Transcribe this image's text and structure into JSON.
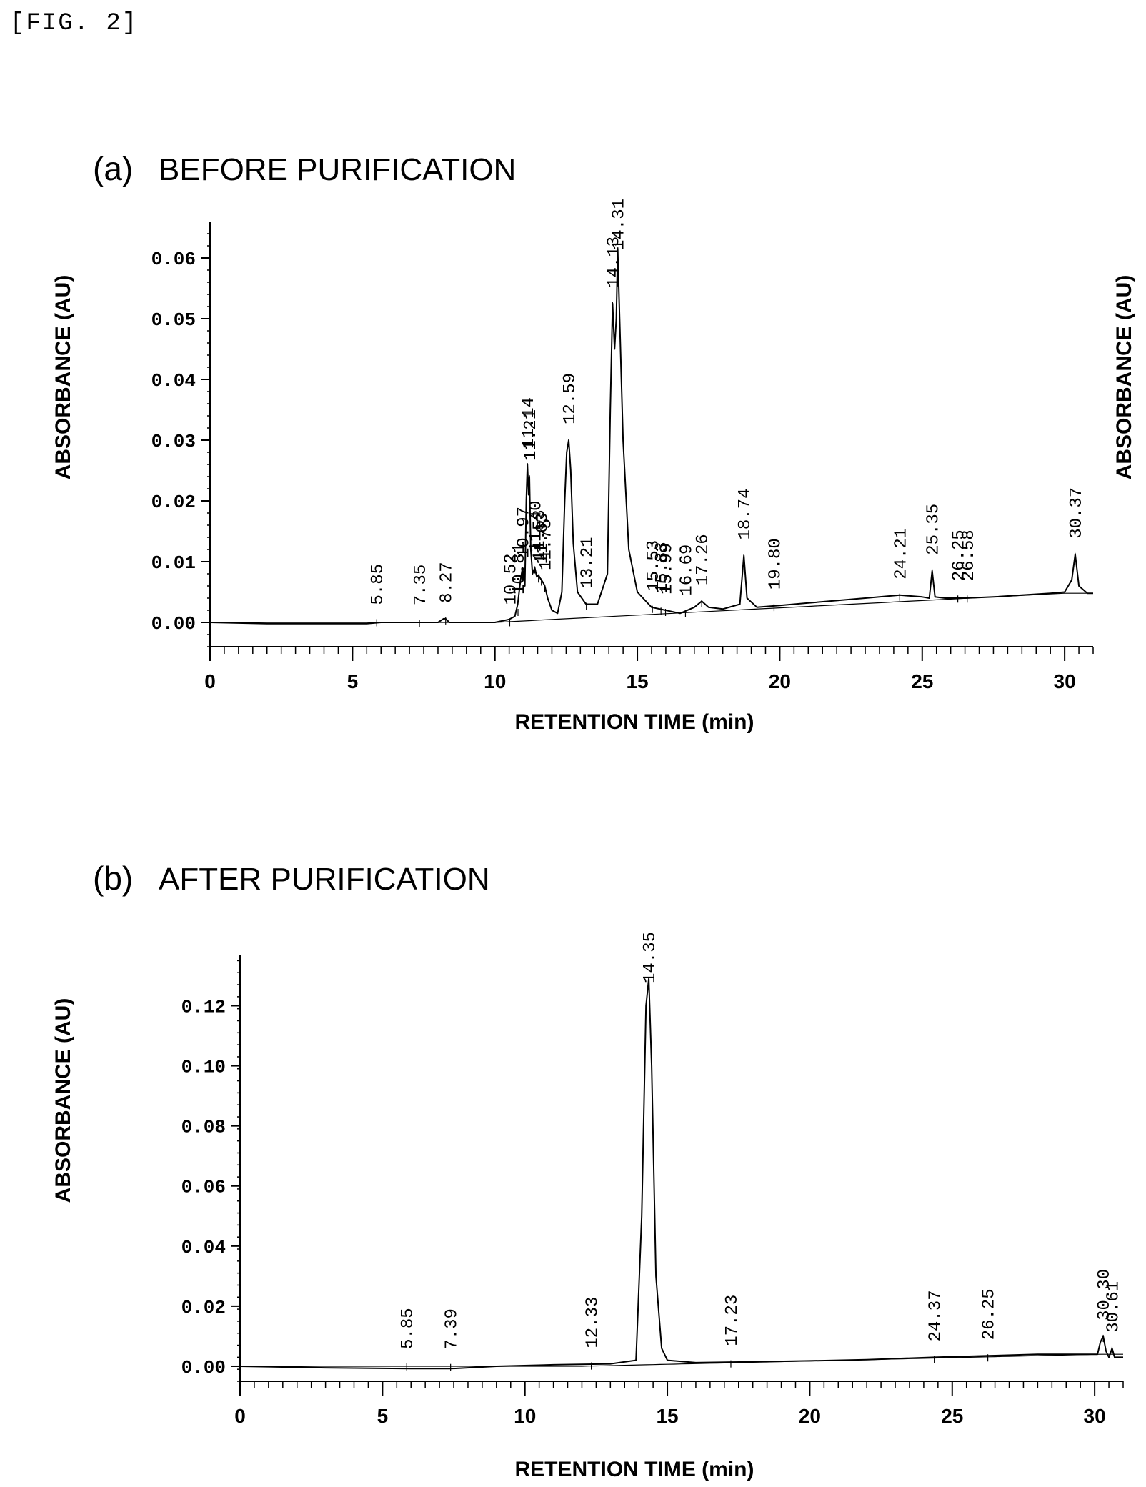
{
  "figure_label": "[FIG. 2]",
  "chart_data": [
    {
      "type": "line",
      "panel_label": "(a)",
      "title": "BEFORE PURIFICATION",
      "xlabel": "RETENTION TIME (min)",
      "ylabel": "ABSORBANCE (AU)",
      "ylabel_right": "ABSORBANCE (AU)",
      "xlim": [
        0,
        31
      ],
      "ylim": [
        -0.004,
        0.066
      ],
      "xticks": [
        0,
        5,
        10,
        15,
        20,
        25,
        30
      ],
      "xtick_labels": [
        "0",
        "5",
        "10",
        "15",
        "20",
        "25",
        "30"
      ],
      "yticks": [
        0.0,
        0.01,
        0.02,
        0.03,
        0.04,
        0.05,
        0.06
      ],
      "ytick_labels": [
        "0.00",
        "0.01",
        "0.02",
        "0.03",
        "0.04",
        "0.05",
        "0.06"
      ],
      "peaks": [
        {
          "label": "5.85",
          "x": 5.85,
          "y": 0.0003
        },
        {
          "label": "7.35",
          "x": 7.35,
          "y": 0.0002
        },
        {
          "label": "8.27",
          "x": 8.27,
          "y": 0.0006
        },
        {
          "label": "10.52",
          "x": 10.52,
          "y": 0.0003
        },
        {
          "label": "10.81",
          "x": 10.81,
          "y": 0.002
        },
        {
          "label": "10.97",
          "x": 10.97,
          "y": 0.008
        },
        {
          "label": "11.14",
          "x": 11.14,
          "y": 0.026
        },
        {
          "label": "11.21",
          "x": 11.21,
          "y": 0.024
        },
        {
          "label": "11.40",
          "x": 11.4,
          "y": 0.009
        },
        {
          "label": "11.53",
          "x": 11.53,
          "y": 0.0075
        },
        {
          "label": "11.63",
          "x": 11.63,
          "y": 0.007
        },
        {
          "label": "11.75",
          "x": 11.75,
          "y": 0.006
        },
        {
          "label": "12.59",
          "x": 12.59,
          "y": 0.03
        },
        {
          "label": "13.21",
          "x": 13.21,
          "y": 0.003
        },
        {
          "label": "14.13",
          "x": 14.13,
          "y": 0.0525
        },
        {
          "label": "14.31",
          "x": 14.31,
          "y": 0.0615
        },
        {
          "label": "15.53",
          "x": 15.53,
          "y": 0.0025
        },
        {
          "label": "15.83",
          "x": 15.83,
          "y": 0.0022
        },
        {
          "label": "15.99",
          "x": 15.99,
          "y": 0.002
        },
        {
          "label": "16.69",
          "x": 16.69,
          "y": 0.0018
        },
        {
          "label": "17.26",
          "x": 17.26,
          "y": 0.0035
        },
        {
          "label": "18.74",
          "x": 18.74,
          "y": 0.011
        },
        {
          "label": "19.80",
          "x": 19.8,
          "y": 0.0028
        },
        {
          "label": "24.21",
          "x": 24.21,
          "y": 0.0045
        },
        {
          "label": "25.35",
          "x": 25.35,
          "y": 0.0085
        },
        {
          "label": "26.25",
          "x": 26.25,
          "y": 0.0042
        },
        {
          "label": "26.58",
          "x": 26.58,
          "y": 0.0042
        },
        {
          "label": "30.37",
          "x": 30.37,
          "y": 0.0112
        }
      ],
      "series": [
        {
          "x": [
            0,
            2,
            4,
            5.5,
            6,
            7,
            8,
            8.2,
            8.27,
            8.4,
            9,
            10,
            10.5,
            10.7,
            10.8,
            10.9,
            10.97,
            11.05,
            11.1,
            11.14,
            11.18,
            11.21,
            11.26,
            11.32,
            11.4,
            11.47,
            11.53,
            11.6,
            11.63,
            11.7,
            11.75,
            11.85,
            12.0,
            12.2,
            12.35,
            12.45,
            12.52,
            12.59,
            12.66,
            12.75,
            12.9,
            13.2,
            13.6,
            13.95,
            14.05,
            14.13,
            14.2,
            14.26,
            14.31,
            14.38,
            14.5,
            14.7,
            15.0,
            15.5,
            16.0,
            16.5,
            17.0,
            17.26,
            17.5,
            18.0,
            18.6,
            18.74,
            18.85,
            19.2,
            20,
            21,
            22,
            23,
            24.21,
            25,
            25.25,
            25.35,
            25.45,
            25.8,
            26.5,
            27.5,
            28.5,
            29.5,
            30.0,
            30.25,
            30.37,
            30.5,
            30.8,
            31.0
          ],
          "y": [
            0.0,
            -0.0002,
            -0.0002,
            -0.0002,
            0.0,
            0.0,
            0.0,
            0.0006,
            0.0006,
            0.0,
            0.0,
            0.0,
            0.0005,
            0.001,
            0.003,
            0.007,
            0.009,
            0.006,
            0.02,
            0.026,
            0.021,
            0.024,
            0.012,
            0.008,
            0.009,
            0.0075,
            0.0078,
            0.0072,
            0.007,
            0.0065,
            0.006,
            0.004,
            0.002,
            0.0015,
            0.005,
            0.02,
            0.028,
            0.03,
            0.025,
            0.013,
            0.005,
            0.003,
            0.003,
            0.008,
            0.035,
            0.0525,
            0.045,
            0.05,
            0.0615,
            0.05,
            0.03,
            0.012,
            0.005,
            0.0025,
            0.002,
            0.0015,
            0.0025,
            0.0035,
            0.0025,
            0.0022,
            0.003,
            0.011,
            0.004,
            0.0025,
            0.0028,
            0.0032,
            0.0036,
            0.004,
            0.0045,
            0.0042,
            0.004,
            0.0085,
            0.0042,
            0.004,
            0.004,
            0.0042,
            0.0045,
            0.0048,
            0.005,
            0.007,
            0.0112,
            0.006,
            0.0048,
            0.0048
          ]
        }
      ]
    },
    {
      "type": "line",
      "panel_label": "(b)",
      "title": "AFTER PURIFICATION",
      "xlabel": "RETENTION TIME (min)",
      "ylabel": "ABSORBANCE (AU)",
      "xlim": [
        0,
        31
      ],
      "ylim": [
        -0.005,
        0.137
      ],
      "xticks": [
        0,
        5,
        10,
        15,
        20,
        25,
        30
      ],
      "xtick_labels": [
        "0",
        "5",
        "10",
        "15",
        "20",
        "25",
        "30"
      ],
      "yticks": [
        0.0,
        0.02,
        0.04,
        0.06,
        0.08,
        0.1,
        0.12
      ],
      "ytick_labels": [
        "0.00",
        "0.02",
        "0.04",
        "0.06",
        "0.08",
        "0.10",
        "0.12"
      ],
      "peaks": [
        {
          "label": "5.85",
          "x": 5.85,
          "y": 0.0005
        },
        {
          "label": "7.39",
          "x": 7.39,
          "y": 0.0003
        },
        {
          "label": "12.33",
          "x": 12.33,
          "y": 0.0008
        },
        {
          "label": "14.35",
          "x": 14.35,
          "y": 0.129
        },
        {
          "label": "17.23",
          "x": 17.23,
          "y": 0.0015
        },
        {
          "label": "24.37",
          "x": 24.37,
          "y": 0.003
        },
        {
          "label": "26.25",
          "x": 26.25,
          "y": 0.0035
        },
        {
          "label": "30.30",
          "x": 30.3,
          "y": 0.01
        },
        {
          "label": "30.61",
          "x": 30.61,
          "y": 0.006
        }
      ],
      "series": [
        {
          "x": [
            0,
            3,
            6,
            7.39,
            9,
            11,
            13,
            13.9,
            14.1,
            14.25,
            14.35,
            14.45,
            14.6,
            14.8,
            15.0,
            16,
            18,
            20,
            22,
            24.37,
            26.25,
            28,
            29.5,
            30.1,
            30.2,
            30.3,
            30.4,
            30.5,
            30.61,
            30.7,
            31.0
          ],
          "y": [
            0.0,
            -0.0005,
            -0.0008,
            -0.0008,
            0.0,
            0.0005,
            0.0008,
            0.002,
            0.05,
            0.12,
            0.129,
            0.1,
            0.03,
            0.006,
            0.002,
            0.0012,
            0.0015,
            0.0018,
            0.0022,
            0.003,
            0.0035,
            0.004,
            0.004,
            0.004,
            0.008,
            0.01,
            0.005,
            0.003,
            0.006,
            0.003,
            0.003
          ]
        }
      ]
    }
  ]
}
